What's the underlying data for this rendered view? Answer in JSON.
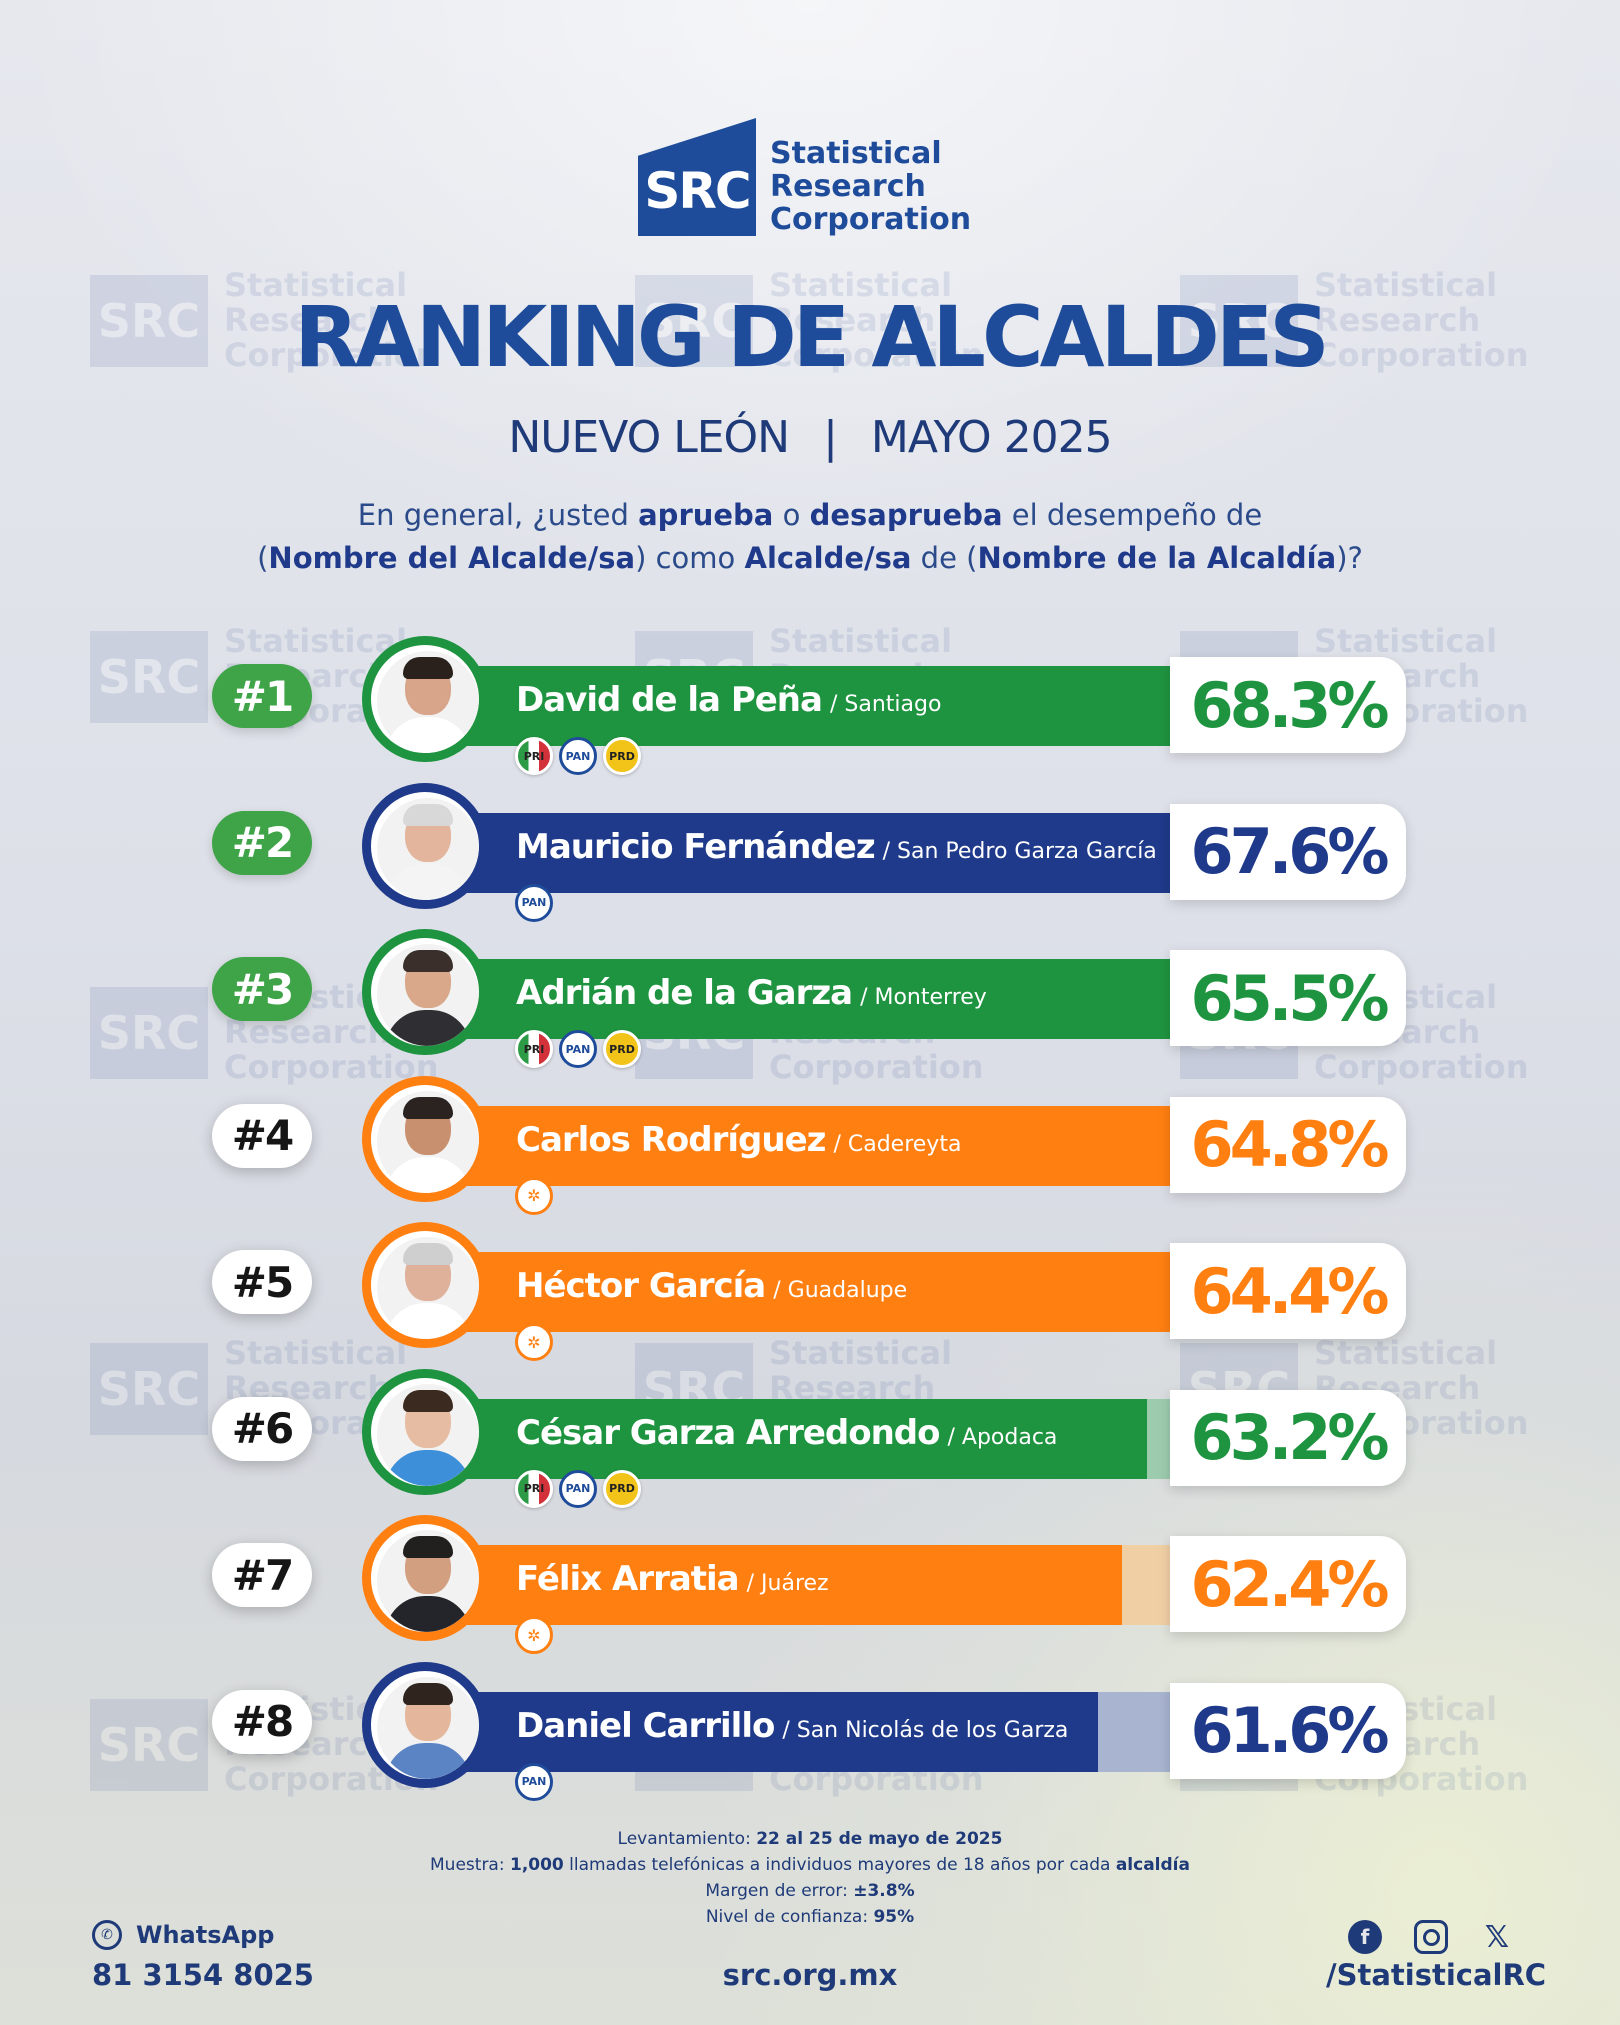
{
  "brand": {
    "logo_mark": "SRC",
    "name_line1": "Statistical",
    "name_line2": "Research",
    "name_line3": "Corporation"
  },
  "header": {
    "title": "RANKING DE ALCALDES",
    "region": "NUEVO LEÓN",
    "separator": "|",
    "period": "MAYO 2025"
  },
  "question": {
    "l1_a": "En general, ¿usted ",
    "l1_b": "aprueba",
    "l1_c": " o ",
    "l1_d": "desaprueba",
    "l1_e": " el desempeño de",
    "l2_a": "(",
    "l2_b": "Nombre del Alcalde/sa",
    "l2_c": ") como ",
    "l2_d": "Alcalde/sa",
    "l2_e": " de (",
    "l2_f": "Nombre de la Alcaldía",
    "l2_g": ")?"
  },
  "colors": {
    "green": "#1f9440",
    "green_light": "#9dcbae",
    "blue": "#1f3a8a",
    "blue_light": "#a8b4d0",
    "orange": "#ff7f11",
    "orange_light": "#f0cfa4",
    "rank_green": "#3ea447"
  },
  "chart_data": {
    "type": "bar",
    "categories": [
      "David de la Peña",
      "Mauricio Fernández",
      "Adrián de la Garza",
      "Carlos Rodríguez",
      "Héctor García",
      "César Garza Arredondo",
      "Félix Arratia",
      "Daniel Carrillo"
    ],
    "values": [
      68.3,
      67.6,
      65.5,
      64.8,
      64.4,
      63.2,
      62.4,
      61.6
    ],
    "unit": "%",
    "orientation": "horizontal",
    "rows": [
      {
        "rank": "#1",
        "name": "David de la Peña",
        "municipality": "/ Santiago",
        "value": 68.3,
        "label": "68.3%",
        "color": "green",
        "parties": [
          "PRI",
          "PAN",
          "PRD"
        ]
      },
      {
        "rank": "#2",
        "name": "Mauricio Fernández",
        "municipality": "/ San Pedro Garza García",
        "value": 67.6,
        "label": "67.6%",
        "color": "blue",
        "parties": [
          "PAN"
        ]
      },
      {
        "rank": "#3",
        "name": "Adrián de la Garza",
        "municipality": "/ Monterrey",
        "value": 65.5,
        "label": "65.5%",
        "color": "green",
        "parties": [
          "PRI",
          "PAN",
          "PRD"
        ]
      },
      {
        "rank": "#4",
        "name": "Carlos Rodríguez",
        "municipality": "/ Cadereyta",
        "value": 64.8,
        "label": "64.8%",
        "color": "orange",
        "parties": [
          "MC"
        ]
      },
      {
        "rank": "#5",
        "name": "Héctor García",
        "municipality": "/ Guadalupe",
        "value": 64.4,
        "label": "64.4%",
        "color": "orange",
        "parties": [
          "MC"
        ]
      },
      {
        "rank": "#6",
        "name": "César Garza Arredondo",
        "municipality": "/ Apodaca",
        "value": 63.2,
        "label": "63.2%",
        "color": "green",
        "parties": [
          "PRI",
          "PAN",
          "PRD"
        ]
      },
      {
        "rank": "#7",
        "name": "Félix Arratia",
        "municipality": "/ Juárez",
        "value": 62.4,
        "label": "62.4%",
        "color": "orange",
        "parties": [
          "MC"
        ]
      },
      {
        "rank": "#8",
        "name": "Daniel Carrillo",
        "municipality": "/ San Nicolás de los Garza",
        "value": 61.6,
        "label": "61.6%",
        "color": "blue",
        "parties": [
          "PAN"
        ]
      }
    ]
  },
  "methodology": {
    "l1_label": "Levantamiento: ",
    "l1_value": "22 al 25 de mayo de 2025",
    "l2_label": "Muestra: ",
    "l2_value": "1,000",
    "l2_rest": " llamadas telefónicas a individuos mayores de 18 años por cada ",
    "l2_end": "alcaldía",
    "l3_label": "Margen de error: ",
    "l3_value": "±3.8%",
    "l4_label": "Nivel de confianza: ",
    "l4_value": "95%"
  },
  "footer": {
    "whatsapp_label": "WhatsApp",
    "phone": "81 3154 8025",
    "website": "src.org.mx",
    "social_handle": "/StatisticalRC",
    "icons": [
      "whatsapp-icon",
      "facebook-icon",
      "instagram-icon",
      "x-icon"
    ]
  }
}
